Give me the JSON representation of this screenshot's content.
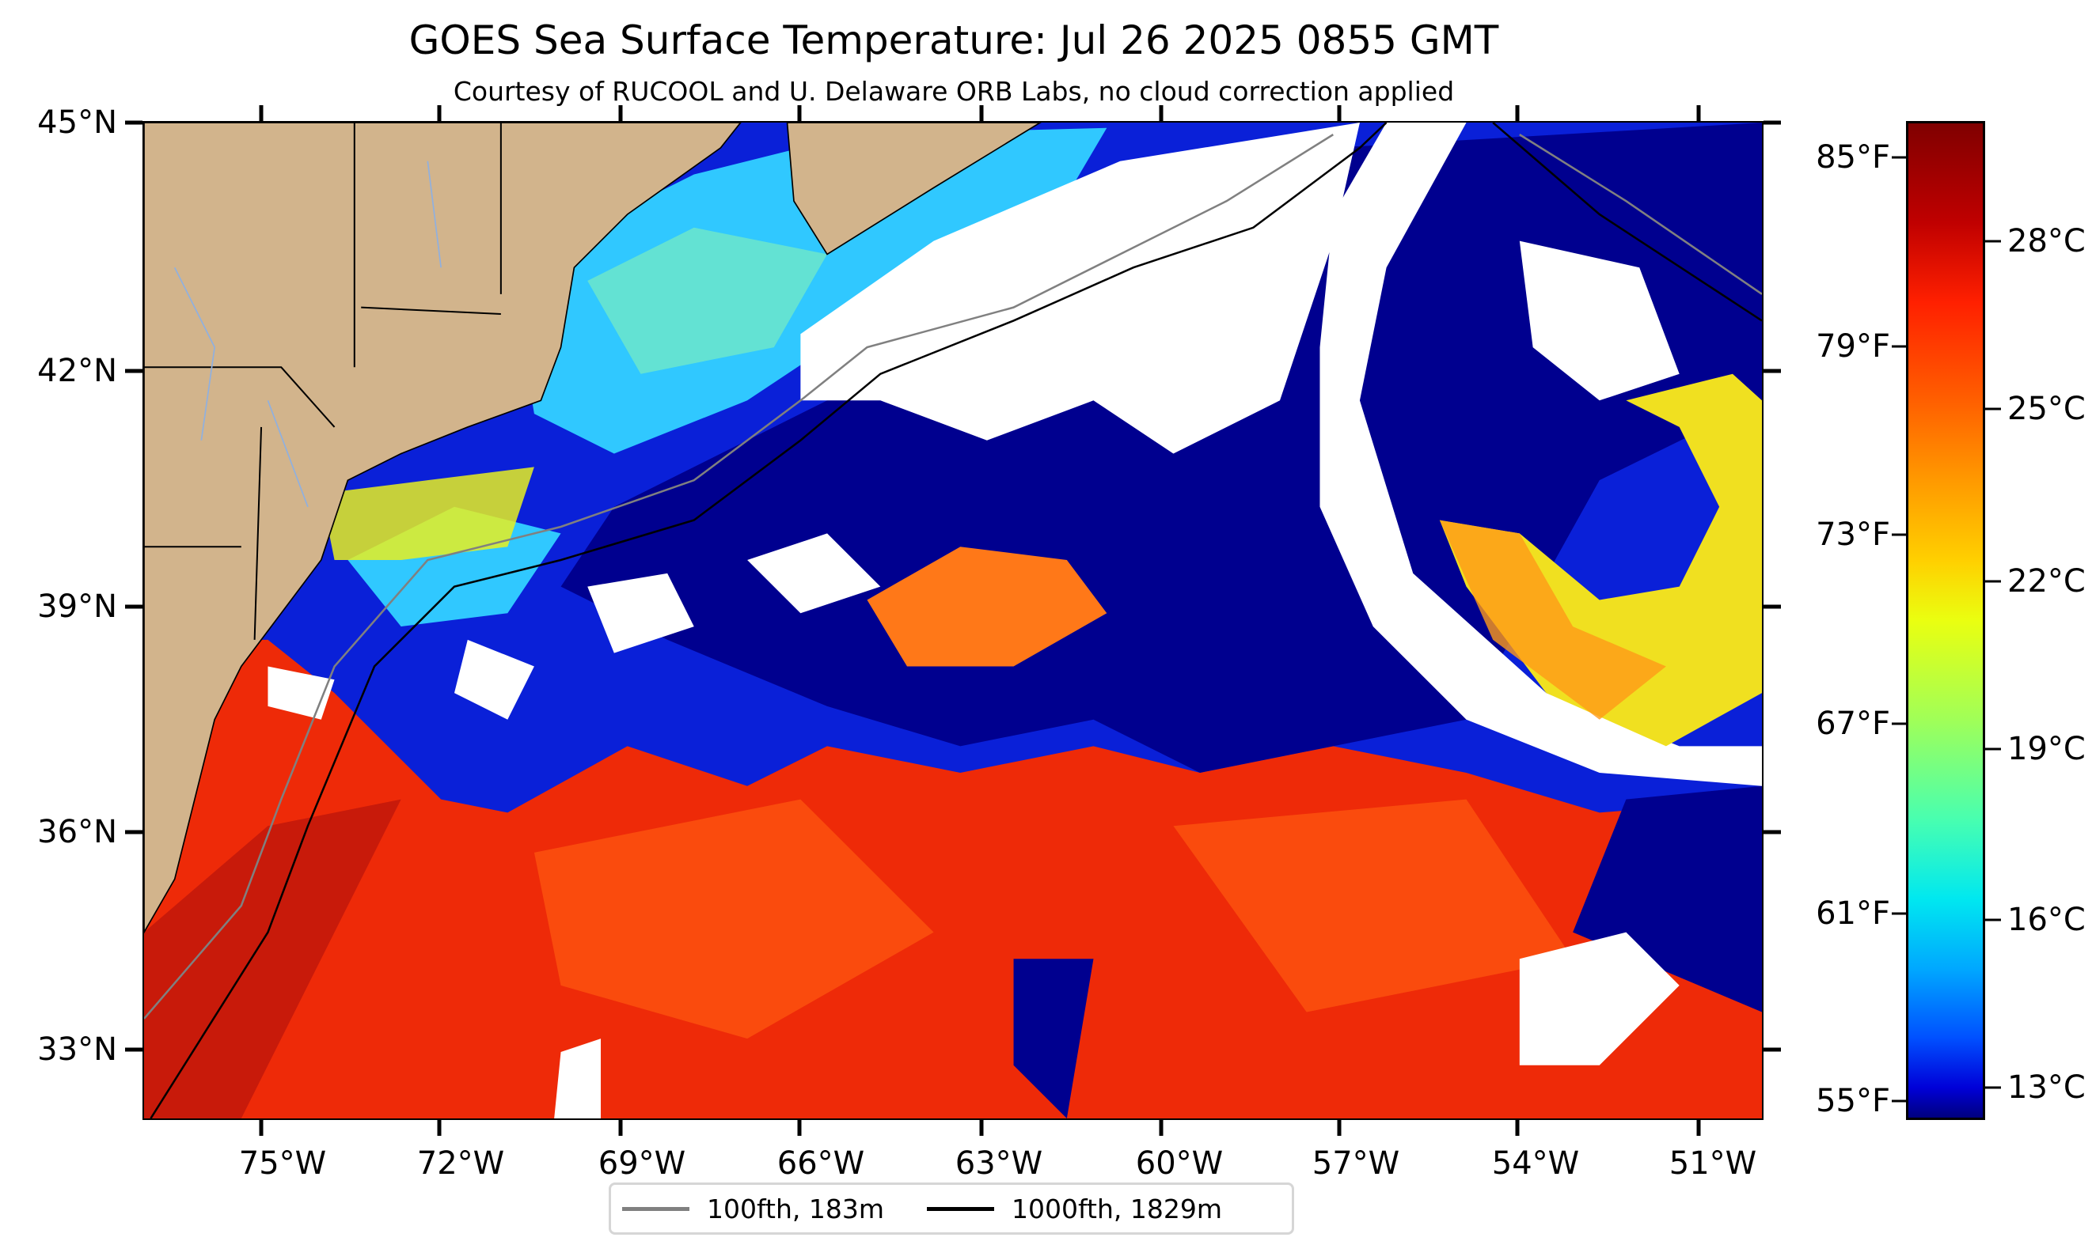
{
  "title": "GOES Sea Surface Temperature: Jul 26 2025 0855 GMT",
  "subtitle": "Courtesy of RUCOOL and U. Delaware ORB Labs, no cloud correction applied",
  "lat_labels": [
    "45°N",
    "42°N",
    "39°N",
    "36°N",
    "33°N"
  ],
  "lon_labels": [
    "75°W",
    "72°W",
    "69°W",
    "66°W",
    "63°W",
    "60°W",
    "57°W",
    "54°W",
    "51°W"
  ],
  "colorbar": {
    "fahrenheit_labels": [
      "85°F",
      "79°F",
      "73°F",
      "67°F",
      "61°F",
      "55°F"
    ],
    "celsius_labels": [
      "28°C",
      "25°C",
      "22°C",
      "19°C",
      "16°C",
      "13°C"
    ],
    "colormap": "jet"
  },
  "legend": [
    {
      "label": "100fth, 183m",
      "color": "#808080"
    },
    {
      "label": "1000fth, 1829m",
      "color": "#000000"
    }
  ],
  "colors": {
    "land": "#d2b48c",
    "cloud": "#ffffff",
    "warm": "#ee2a08",
    "cold": "#00008f"
  }
}
